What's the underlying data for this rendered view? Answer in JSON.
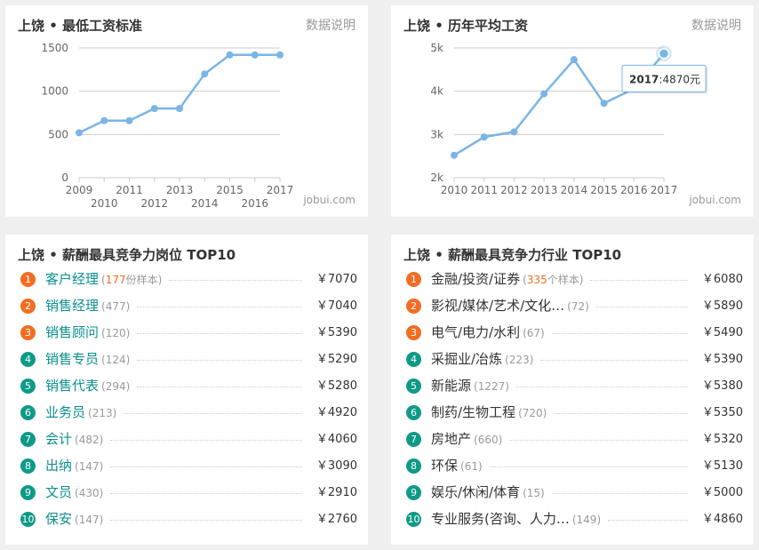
{
  "cards": {
    "min_wage": {
      "title": "上饶 • 最低工资标准",
      "link": "数据说明",
      "source": "jobui.com"
    },
    "avg_salary": {
      "title": "上饶 • 历年平均工资",
      "link": "数据说明",
      "source": "jobui.com"
    },
    "top_jobs": {
      "title": "上饶 • 薪酬最具竞争力岗位 TOP10"
    },
    "top_industries": {
      "title": "上饶 • 薪酬最具竞争力行业 TOP10"
    }
  },
  "chart_data": [
    {
      "type": "line",
      "x": [
        "2009",
        "2010",
        "2011",
        "2012",
        "2013",
        "2014",
        "2015",
        "2016",
        "2017"
      ],
      "values": [
        520,
        660,
        660,
        800,
        800,
        1200,
        1420,
        1420,
        1420
      ],
      "y_ticks": [
        "0",
        "500",
        "1000",
        "1500"
      ],
      "ylim": [
        0,
        1500
      ],
      "grid": true,
      "color": "#7ab5e6"
    },
    {
      "type": "line",
      "x": [
        "2010",
        "2011",
        "2012",
        "2013",
        "2014",
        "2015",
        "2016",
        "2017"
      ],
      "values": [
        2520,
        2940,
        3060,
        3940,
        4730,
        3720,
        4060,
        4870
      ],
      "y_ticks": [
        "2k",
        "3k",
        "4k",
        "5k"
      ],
      "ylim": [
        2000,
        5000
      ],
      "grid": true,
      "color": "#7ab5e6",
      "tooltip": {
        "year": "2017",
        "sep": ":",
        "value": "4870元"
      }
    }
  ],
  "top_jobs": {
    "sample_suffix": "份样本",
    "items": [
      {
        "rank": "1",
        "name": "客户经理",
        "count": "177",
        "value": "￥7070"
      },
      {
        "rank": "2",
        "name": "销售经理",
        "count": "(477)",
        "value": "￥7040"
      },
      {
        "rank": "3",
        "name": "销售顾问",
        "count": "(120)",
        "value": "￥5390"
      },
      {
        "rank": "4",
        "name": "销售专员",
        "count": "(124)",
        "value": "￥5290"
      },
      {
        "rank": "5",
        "name": "销售代表",
        "count": "(294)",
        "value": "￥5280"
      },
      {
        "rank": "6",
        "name": "业务员",
        "count": "(213)",
        "value": "￥4920"
      },
      {
        "rank": "7",
        "name": "会计",
        "count": "(482)",
        "value": "￥4060"
      },
      {
        "rank": "8",
        "name": "出纳",
        "count": "(147)",
        "value": "￥3090"
      },
      {
        "rank": "9",
        "name": "文员",
        "count": "(430)",
        "value": "￥2910"
      },
      {
        "rank": "10",
        "name": "保安",
        "count": "(147)",
        "value": "￥2760"
      }
    ]
  },
  "top_industries": {
    "sample_suffix": "个样本",
    "items": [
      {
        "rank": "1",
        "name": "金融/投资/证券",
        "count": "335",
        "value": "￥6080"
      },
      {
        "rank": "2",
        "name": "影视/媒体/艺术/文化…",
        "count": "(72)",
        "value": "￥5890"
      },
      {
        "rank": "3",
        "name": "电气/电力/水利",
        "count": "(67)",
        "value": "￥5490"
      },
      {
        "rank": "4",
        "name": "采掘业/冶炼",
        "count": "(223)",
        "value": "￥5390"
      },
      {
        "rank": "5",
        "name": "新能源",
        "count": "(1227)",
        "value": "￥5380"
      },
      {
        "rank": "6",
        "name": "制药/生物工程",
        "count": "(720)",
        "value": "￥5350"
      },
      {
        "rank": "7",
        "name": "房地产",
        "count": "(660)",
        "value": "￥5320"
      },
      {
        "rank": "8",
        "name": "环保",
        "count": "(61)",
        "value": "￥5130"
      },
      {
        "rank": "9",
        "name": "娱乐/休闲/体育",
        "count": "(15)",
        "value": "￥5000"
      },
      {
        "rank": "10",
        "name": "专业服务(咨询、人力…",
        "count": "(149)",
        "value": "￥4860"
      }
    ]
  }
}
